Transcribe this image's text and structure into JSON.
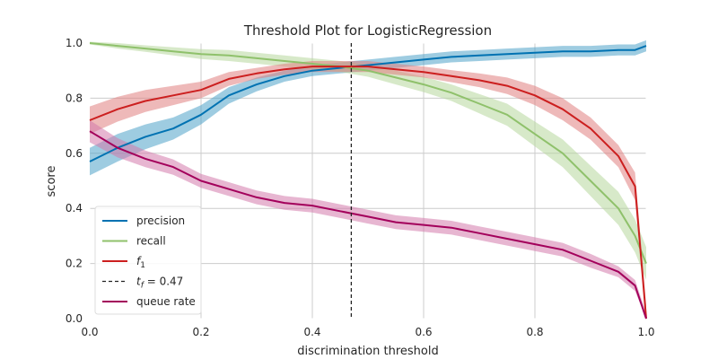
{
  "chart_data": {
    "type": "line",
    "title": "Threshold Plot for LogisticRegression",
    "xlabel": "discrimination threshold",
    "ylabel": "score",
    "xlim": [
      0.0,
      1.0
    ],
    "ylim": [
      0.0,
      1.0
    ],
    "xticks": [
      "0.0",
      "0.2",
      "0.4",
      "0.6",
      "0.8",
      "1.0"
    ],
    "yticks": [
      "0.0",
      "0.2",
      "0.4",
      "0.6",
      "0.8",
      "1.0"
    ],
    "grid": true,
    "legend_position": "lower-left",
    "threshold_line": {
      "x": 0.47,
      "label_var": "t",
      "label_sub": "f",
      "label_rest": "= 0.47",
      "color": "#222222"
    },
    "x": [
      0.0,
      0.05,
      0.1,
      0.15,
      0.2,
      0.25,
      0.3,
      0.35,
      0.4,
      0.45,
      0.5,
      0.55,
      0.6,
      0.65,
      0.7,
      0.75,
      0.8,
      0.85,
      0.9,
      0.95,
      0.98,
      1.0
    ],
    "series": [
      {
        "name": "precision",
        "color": "#0072b2",
        "band_color": "#4ea3c9",
        "values": [
          0.57,
          0.62,
          0.66,
          0.69,
          0.74,
          0.81,
          0.85,
          0.88,
          0.9,
          0.91,
          0.92,
          0.93,
          0.94,
          0.95,
          0.955,
          0.96,
          0.965,
          0.97,
          0.97,
          0.975,
          0.975,
          0.99
        ],
        "band": [
          0.05,
          0.05,
          0.045,
          0.04,
          0.035,
          0.03,
          0.025,
          0.02,
          0.02,
          0.02,
          0.02,
          0.02,
          0.02,
          0.02,
          0.02,
          0.02,
          0.02,
          0.02,
          0.02,
          0.02,
          0.02,
          0.02
        ]
      },
      {
        "name": "recall",
        "color": "#8fc16b",
        "band_color": "#b7d79d",
        "values": [
          1.0,
          0.99,
          0.98,
          0.97,
          0.96,
          0.955,
          0.945,
          0.935,
          0.925,
          0.915,
          0.9,
          0.875,
          0.85,
          0.82,
          0.78,
          0.74,
          0.67,
          0.6,
          0.5,
          0.4,
          0.3,
          0.2
        ],
        "band": [
          0.005,
          0.01,
          0.012,
          0.015,
          0.018,
          0.02,
          0.02,
          0.02,
          0.02,
          0.02,
          0.022,
          0.025,
          0.028,
          0.03,
          0.035,
          0.04,
          0.045,
          0.05,
          0.055,
          0.06,
          0.06,
          0.06
        ]
      },
      {
        "name": "f1",
        "label_base": "f",
        "label_sub": "1",
        "color": "#cc1f1f",
        "band_color": "#e07f7f",
        "values": [
          0.72,
          0.76,
          0.79,
          0.81,
          0.83,
          0.87,
          0.89,
          0.905,
          0.915,
          0.915,
          0.915,
          0.905,
          0.895,
          0.88,
          0.865,
          0.845,
          0.81,
          0.76,
          0.69,
          0.59,
          0.48,
          0.0
        ],
        "band": [
          0.05,
          0.045,
          0.04,
          0.035,
          0.03,
          0.025,
          0.02,
          0.02,
          0.02,
          0.02,
          0.02,
          0.02,
          0.02,
          0.022,
          0.025,
          0.03,
          0.035,
          0.04,
          0.04,
          0.04,
          0.05,
          0.05
        ]
      },
      {
        "name": "queue rate",
        "color": "#a3005b",
        "band_color": "#d37aab",
        "values": [
          0.68,
          0.62,
          0.58,
          0.55,
          0.5,
          0.47,
          0.44,
          0.42,
          0.41,
          0.39,
          0.37,
          0.35,
          0.34,
          0.33,
          0.31,
          0.29,
          0.27,
          0.25,
          0.21,
          0.17,
          0.12,
          0.0
        ],
        "band": [
          0.04,
          0.035,
          0.03,
          0.028,
          0.025,
          0.025,
          0.025,
          0.025,
          0.025,
          0.025,
          0.025,
          0.025,
          0.025,
          0.025,
          0.025,
          0.025,
          0.025,
          0.025,
          0.025,
          0.02,
          0.02,
          0.02
        ]
      }
    ]
  }
}
